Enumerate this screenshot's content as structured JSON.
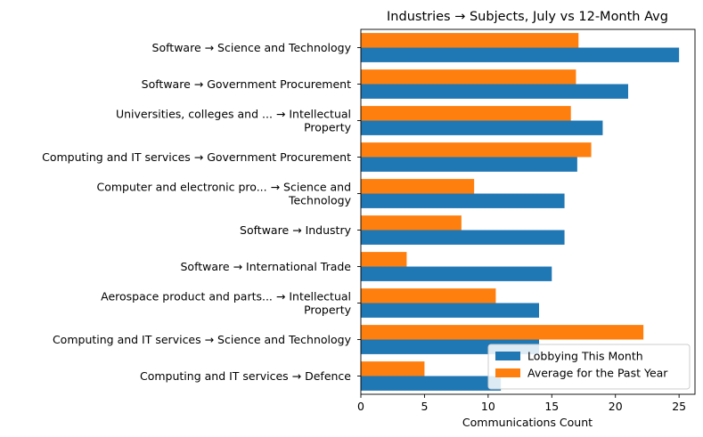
{
  "chart_data": {
    "type": "bar",
    "orientation": "horizontal",
    "title": "Industries → Subjects, July vs 12-Month Avg",
    "xlabel": "Communications Count",
    "ylabel": "",
    "xlim": [
      0,
      26.25
    ],
    "xticks": [
      0,
      5,
      10,
      15,
      20,
      25
    ],
    "grid": false,
    "legend_position": "lower-right",
    "categories": [
      [
        "Software → Science and Technology"
      ],
      [
        "Software → Government Procurement"
      ],
      [
        "Universities, colleges and ... → Intellectual",
        "Property"
      ],
      [
        "Computing and IT services → Government Procurement"
      ],
      [
        "Computer and electronic pro... → Science and",
        "Technology"
      ],
      [
        "Software → Industry"
      ],
      [
        "Software → International Trade"
      ],
      [
        "Aerospace product and parts... → Intellectual",
        "Property"
      ],
      [
        "Computing and IT services → Science and Technology"
      ],
      [
        "Computing and IT services → Defence"
      ]
    ],
    "series": [
      {
        "name": "Lobbying This Month",
        "color": "#1f77b4",
        "values": [
          25,
          21,
          19,
          17,
          16,
          16,
          15,
          14,
          14,
          11
        ]
      },
      {
        "name": "Average for the Past Year",
        "color": "#ff7f0e",
        "values": [
          17.1,
          16.9,
          16.5,
          18.1,
          8.9,
          7.9,
          3.6,
          10.6,
          22.2,
          5.0
        ]
      }
    ]
  }
}
